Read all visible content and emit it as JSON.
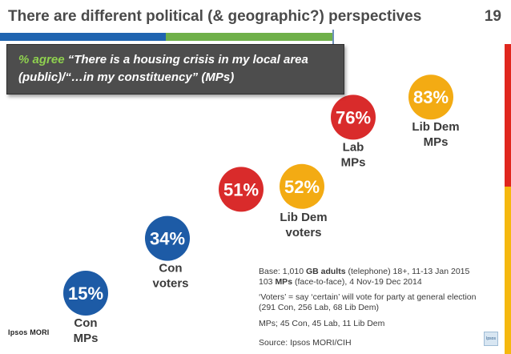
{
  "slide": {
    "title": "There are different political (& geographic?) perspectives",
    "number": "19"
  },
  "header": {
    "agree_word": "% agree",
    "quote": "“There is a housing crisis in my local area (public)/“…in my constituency” (MPs)"
  },
  "colors": {
    "con": "#1d5ba6",
    "lib_dem": "#f3ab13",
    "lab": "#d92b2b",
    "accent_green": "#8fd14f",
    "underline_blue": "#1f64b0",
    "underline_green": "#6fb04a",
    "strip_red": "#e0271e",
    "strip_yellow": "#f5b80f"
  },
  "chart_data": {
    "type": "bubble",
    "unit": "%",
    "series": [
      {
        "label_lines": [
          "Con",
          "MPs"
        ],
        "value": 15,
        "party": "con"
      },
      {
        "label_lines": [
          "Con",
          "voters"
        ],
        "value": 34,
        "party": "con"
      },
      {
        "label_lines": [],
        "value": 51,
        "party": "lab"
      },
      {
        "label_lines": [
          "Lib Dem",
          "voters"
        ],
        "value": 52,
        "party": "lib_dem"
      },
      {
        "label_lines": [
          "Lab",
          "MPs"
        ],
        "value": 76,
        "party": "lab"
      },
      {
        "label_lines": [
          "Lib Dem",
          "MPs"
        ],
        "value": 83,
        "party": "lib_dem"
      }
    ]
  },
  "notes": {
    "base_prefix": "Base: 1,010 ",
    "base_bold_1": "GB adults",
    "base_mid": " (telephone) 18+, 11-13 Jan 2015",
    "mps_prefix": "103 ",
    "mps_bold": "MPs",
    "mps_suffix": " (face-to-face), 4 Nov-19 Dec 2014",
    "voters_line1": "‘Voters’ = say ‘certain’ will vote for party at general election",
    "voters_line2": "(291 Con, 256 Lab, 68 Lib Dem)",
    "mps_breakdown": "MPs; 45 Con, 45 Lab, 11 Lib Dem",
    "source": "Source: Ipsos MORI/CIH"
  },
  "branding": {
    "logo_text": "Ipsos MORI",
    "corner_logo_text": "Ipsos"
  }
}
